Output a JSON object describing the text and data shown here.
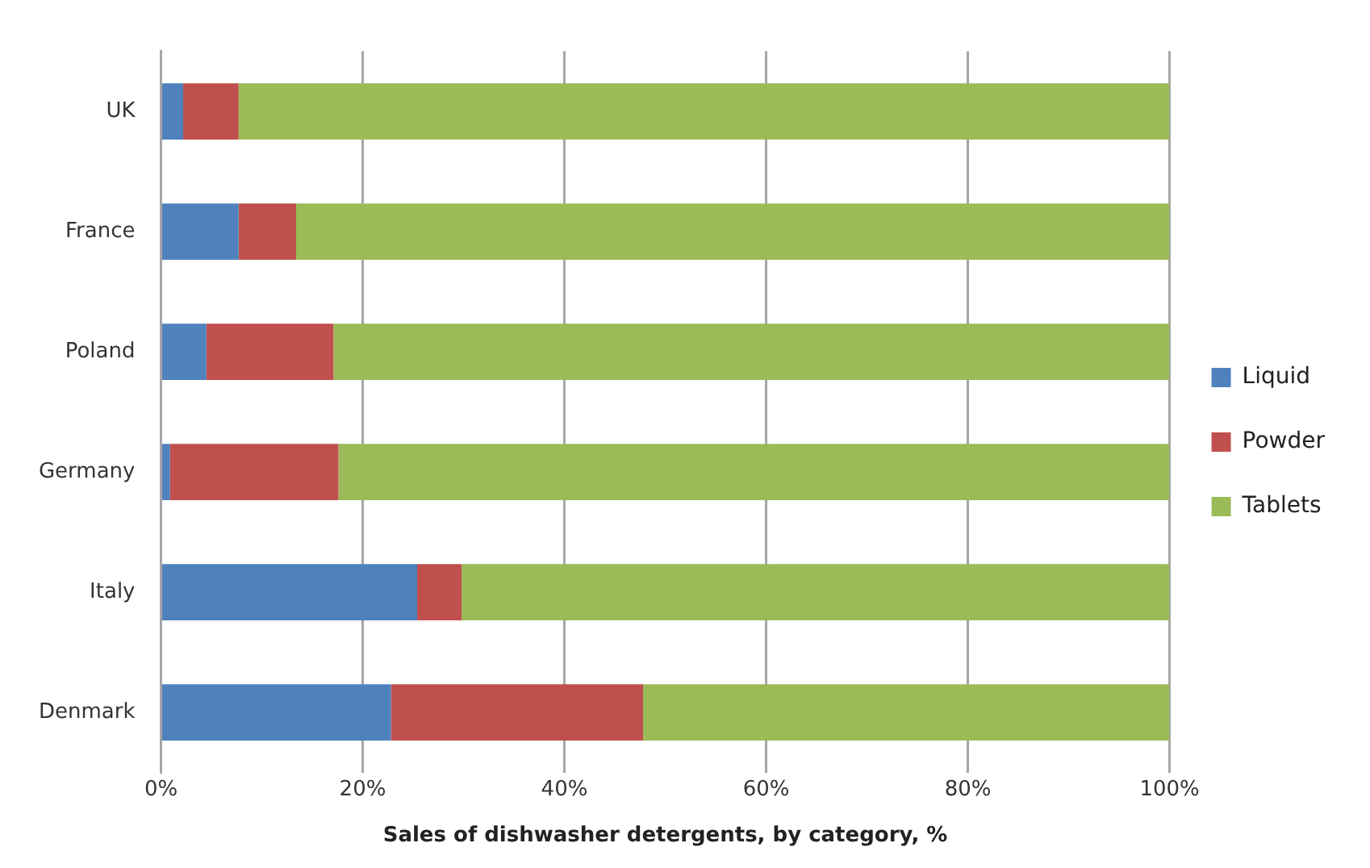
{
  "chart_data": {
    "type": "bar",
    "orientation": "horizontal",
    "stacked": true,
    "xlabel": "Sales of dishwasher detergents, by category, %",
    "categories": [
      "UK",
      "France",
      "Poland",
      "Germany",
      "Italy",
      "Denmark"
    ],
    "series": [
      {
        "name": "Liquid",
        "color": "#4f81bd",
        "values": [
          2.2,
          7.7,
          4.5,
          0.9,
          25.4,
          22.8
        ]
      },
      {
        "name": "Powder",
        "color": "#c0504d",
        "values": [
          5.5,
          5.7,
          12.6,
          16.7,
          4.4,
          25.0
        ]
      },
      {
        "name": "Tablets",
        "color": "#9bbb59",
        "values": [
          92.3,
          86.6,
          82.9,
          82.4,
          70.2,
          52.2
        ]
      }
    ],
    "xlim": [
      0,
      100
    ],
    "xticks": [
      {
        "value": 0,
        "label": "0%"
      },
      {
        "value": 20,
        "label": "20%"
      },
      {
        "value": 40,
        "label": "40%"
      },
      {
        "value": 60,
        "label": "60%"
      },
      {
        "value": 80,
        "label": "80%"
      },
      {
        "value": 100,
        "label": "100%"
      }
    ],
    "grid": "x",
    "legend": "right"
  }
}
